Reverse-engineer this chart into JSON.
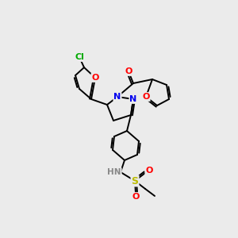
{
  "bg_color": "#ebebeb",
  "atom_colors": {
    "C": "#000000",
    "N": "#0000ee",
    "O": "#ff0000",
    "Cl": "#00aa00",
    "S": "#bbbb00",
    "H": "#888888"
  },
  "bond_color": "#000000",
  "lw": 1.4,
  "fs": 7.5
}
